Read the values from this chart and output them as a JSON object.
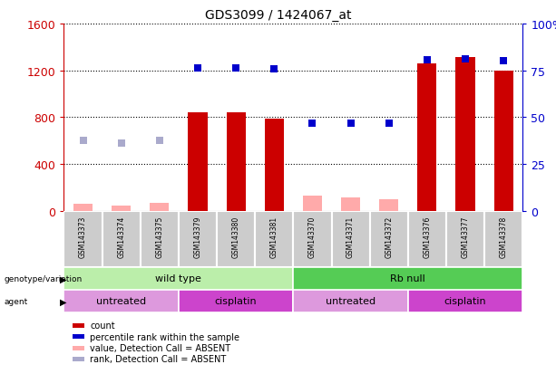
{
  "title": "GDS3099 / 1424067_at",
  "samples": [
    "GSM143373",
    "GSM143374",
    "GSM143375",
    "GSM143379",
    "GSM143380",
    "GSM143381",
    "GSM143370",
    "GSM143371",
    "GSM143372",
    "GSM143376",
    "GSM143377",
    "GSM143378"
  ],
  "count_values": [
    null,
    null,
    null,
    840,
    840,
    790,
    null,
    null,
    null,
    1260,
    1310,
    1195
  ],
  "count_absent": [
    60,
    45,
    70,
    null,
    null,
    null,
    130,
    115,
    100,
    null,
    null,
    null
  ],
  "rank_values_pct": [
    null,
    null,
    null,
    76.25,
    76.25,
    75.9,
    47.0,
    47.0,
    46.6,
    80.6,
    81.25,
    80.0
  ],
  "rank_absent_pct": [
    37.5,
    36.0,
    37.4,
    null,
    null,
    null,
    null,
    null,
    null,
    null,
    null,
    null
  ],
  "ylim_left": [
    0,
    1600
  ],
  "ylim_right": [
    0,
    100
  ],
  "yticks_left": [
    0,
    400,
    800,
    1200,
    1600
  ],
  "yticks_right": [
    0,
    25,
    50,
    75,
    100
  ],
  "ytick_labels_right": [
    "0",
    "25",
    "50",
    "75",
    "100%"
  ],
  "ytick_labels_left": [
    "0",
    "400",
    "800",
    "1200",
    "1600"
  ],
  "bar_color": "#cc0000",
  "bar_absent_color": "#ffaaaa",
  "rank_color": "#0000cc",
  "rank_absent_color": "#aaaacc",
  "grid_color": "#000000",
  "bg_color": "#ffffff",
  "plot_bg": "#ffffff",
  "genotype_groups": [
    {
      "label": "wild type",
      "start": 0,
      "end": 6,
      "color": "#bbeeaa"
    },
    {
      "label": "Rb null",
      "start": 6,
      "end": 12,
      "color": "#55cc55"
    }
  ],
  "agent_groups": [
    {
      "label": "untreated",
      "start": 0,
      "end": 3,
      "color": "#dd99dd"
    },
    {
      "label": "cisplatin",
      "start": 3,
      "end": 6,
      "color": "#cc44cc"
    },
    {
      "label": "untreated",
      "start": 6,
      "end": 9,
      "color": "#dd99dd"
    },
    {
      "label": "cisplatin",
      "start": 9,
      "end": 12,
      "color": "#cc44cc"
    }
  ],
  "left_axis_color": "#cc0000",
  "right_axis_color": "#0000cc",
  "legend_items": [
    {
      "label": "count",
      "color": "#cc0000"
    },
    {
      "label": "percentile rank within the sample",
      "color": "#0000cc"
    },
    {
      "label": "value, Detection Call = ABSENT",
      "color": "#ffaaaa"
    },
    {
      "label": "rank, Detection Call = ABSENT",
      "color": "#aaaacc"
    }
  ],
  "bar_width": 0.5,
  "sample_box_color": "#cccccc",
  "sample_box_edge": "#ffffff"
}
